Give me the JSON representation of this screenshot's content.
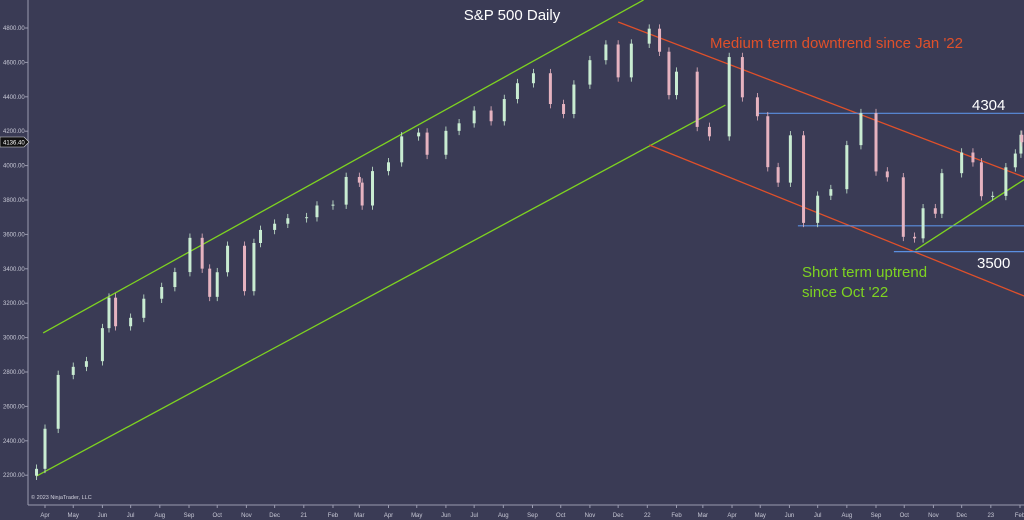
{
  "chart_data": {
    "type": "candlestick",
    "title": "S&P 500 Daily",
    "copyright": "© 2023 NinjaTrader, LLC",
    "last_price_label": "4136.40",
    "ylim": [
      2100,
      4960
    ],
    "y_ticks": [
      "4800.00",
      "4600.00",
      "4400.00",
      "4200.00",
      "4000.00",
      "3800.00",
      "3600.00",
      "3400.00",
      "3200.00",
      "3000.00",
      "2800.00",
      "2600.00",
      "2400.00",
      "2200.00"
    ],
    "x_ticks": [
      {
        "date": "2020-04-01",
        "label": "Apr"
      },
      {
        "date": "2020-05-01",
        "label": "May"
      },
      {
        "date": "2020-06-01",
        "label": "Jun"
      },
      {
        "date": "2020-07-01",
        "label": "Jul"
      },
      {
        "date": "2020-08-01",
        "label": "Aug"
      },
      {
        "date": "2020-09-01",
        "label": "Sep"
      },
      {
        "date": "2020-10-01",
        "label": "Oct"
      },
      {
        "date": "2020-11-01",
        "label": "Nov"
      },
      {
        "date": "2020-12-01",
        "label": "Dec"
      },
      {
        "date": "2021-01-01",
        "label": "21"
      },
      {
        "date": "2021-02-01",
        "label": "Feb"
      },
      {
        "date": "2021-03-01",
        "label": "Mar"
      },
      {
        "date": "2021-04-01",
        "label": "Apr"
      },
      {
        "date": "2021-05-01",
        "label": "May"
      },
      {
        "date": "2021-06-01",
        "label": "Jun"
      },
      {
        "date": "2021-07-01",
        "label": "Jul"
      },
      {
        "date": "2021-08-01",
        "label": "Aug"
      },
      {
        "date": "2021-09-01",
        "label": "Sep"
      },
      {
        "date": "2021-10-01",
        "label": "Oct"
      },
      {
        "date": "2021-11-01",
        "label": "Nov"
      },
      {
        "date": "2021-12-01",
        "label": "Dec"
      },
      {
        "date": "2022-01-01",
        "label": "22"
      },
      {
        "date": "2022-02-01",
        "label": "Feb"
      },
      {
        "date": "2022-03-01",
        "label": "Mar"
      },
      {
        "date": "2022-04-01",
        "label": "Apr"
      },
      {
        "date": "2022-05-01",
        "label": "May"
      },
      {
        "date": "2022-06-01",
        "label": "Jun"
      },
      {
        "date": "2022-07-01",
        "label": "Jul"
      },
      {
        "date": "2022-08-01",
        "label": "Aug"
      },
      {
        "date": "2022-09-01",
        "label": "Sep"
      },
      {
        "date": "2022-10-01",
        "label": "Oct"
      },
      {
        "date": "2022-11-01",
        "label": "Nov"
      },
      {
        "date": "2022-12-01",
        "label": "Dec"
      },
      {
        "date": "2023-01-01",
        "label": "23"
      },
      {
        "date": "2023-02-01",
        "label": "Feb"
      }
    ],
    "closes": [
      [
        "2020-03-23",
        2237
      ],
      [
        "2020-04-01",
        2470
      ],
      [
        "2020-04-15",
        2783
      ],
      [
        "2020-05-01",
        2830
      ],
      [
        "2020-05-15",
        2863
      ],
      [
        "2020-06-01",
        3055
      ],
      [
        "2020-06-08",
        3232
      ],
      [
        "2020-06-15",
        3066
      ],
      [
        "2020-07-01",
        3115
      ],
      [
        "2020-07-15",
        3226
      ],
      [
        "2020-08-03",
        3294
      ],
      [
        "2020-08-17",
        3381
      ],
      [
        "2020-09-02",
        3580
      ],
      [
        "2020-09-15",
        3401
      ],
      [
        "2020-09-23",
        3237
      ],
      [
        "2020-10-01",
        3380
      ],
      [
        "2020-10-12",
        3534
      ],
      [
        "2020-10-30",
        3270
      ],
      [
        "2020-11-09",
        3550
      ],
      [
        "2020-11-16",
        3626
      ],
      [
        "2020-12-01",
        3662
      ],
      [
        "2020-12-15",
        3694
      ],
      [
        "2021-01-04",
        3700
      ],
      [
        "2021-01-15",
        3768
      ],
      [
        "2021-02-01",
        3773
      ],
      [
        "2021-02-15",
        3934
      ],
      [
        "2021-03-01",
        3901
      ],
      [
        "2021-03-04",
        3768
      ],
      [
        "2021-03-15",
        3968
      ],
      [
        "2021-04-01",
        4019
      ],
      [
        "2021-04-15",
        4170
      ],
      [
        "2021-05-03",
        4192
      ],
      [
        "2021-05-12",
        4063
      ],
      [
        "2021-06-01",
        4202
      ],
      [
        "2021-06-15",
        4246
      ],
      [
        "2021-07-01",
        4320
      ],
      [
        "2021-07-19",
        4258
      ],
      [
        "2021-08-02",
        4387
      ],
      [
        "2021-08-16",
        4479
      ],
      [
        "2021-09-02",
        4537
      ],
      [
        "2021-09-20",
        4358
      ],
      [
        "2021-10-04",
        4300
      ],
      [
        "2021-10-15",
        4471
      ],
      [
        "2021-11-01",
        4613
      ],
      [
        "2021-11-18",
        4704
      ],
      [
        "2021-12-01",
        4513
      ],
      [
        "2021-12-15",
        4709
      ],
      [
        "2022-01-03",
        4796
      ],
      [
        "2022-01-14",
        4662
      ],
      [
        "2022-01-24",
        4410
      ],
      [
        "2022-02-01",
        4546
      ],
      [
        "2022-02-23",
        4225
      ],
      [
        "2022-03-08",
        4170
      ],
      [
        "2022-03-29",
        4631
      ],
      [
        "2022-04-12",
        4397
      ],
      [
        "2022-04-28",
        4287
      ],
      [
        "2022-05-09",
        3991
      ],
      [
        "2022-05-20",
        3901
      ],
      [
        "2022-06-02",
        4176
      ],
      [
        "2022-06-16",
        3667
      ],
      [
        "2022-07-01",
        3825
      ],
      [
        "2022-07-15",
        3863
      ],
      [
        "2022-08-01",
        4119
      ],
      [
        "2022-08-16",
        4305
      ],
      [
        "2022-09-01",
        3966
      ],
      [
        "2022-09-13",
        3932
      ],
      [
        "2022-09-30",
        3586
      ],
      [
        "2022-10-12",
        3577
      ],
      [
        "2022-10-21",
        3752
      ],
      [
        "2022-11-03",
        3720
      ],
      [
        "2022-11-10",
        3956
      ],
      [
        "2022-12-01",
        4076
      ],
      [
        "2022-12-13",
        4019
      ],
      [
        "2022-12-22",
        3822
      ],
      [
        "2023-01-03",
        3824
      ],
      [
        "2023-01-17",
        3990
      ],
      [
        "2023-01-27",
        4070
      ],
      [
        "2023-02-02",
        4179
      ],
      [
        "2023-02-03",
        4136
      ]
    ],
    "trendlines": [
      {
        "name": "long-channel-upper",
        "color": "#7ed321",
        "from": [
          "2020-03-30",
          3027
        ],
        "to": [
          "2021-12-28",
          4963
        ]
      },
      {
        "name": "long-channel-lower",
        "color": "#7ed321",
        "from": [
          "2020-03-23",
          2195
        ],
        "to": [
          "2022-03-25",
          4352
        ]
      },
      {
        "name": "medium-downtrend-upper",
        "color": "#e0502a",
        "from": [
          "2021-12-01",
          4835
        ],
        "to": [
          "2023-02-08",
          3928
        ]
      },
      {
        "name": "medium-downtrend-lower",
        "color": "#e0502a",
        "from": [
          "2022-01-03",
          4120
        ],
        "to": [
          "2023-02-08",
          3236
        ]
      },
      {
        "name": "short-uptrend",
        "color": "#7ed321",
        "from": [
          "2022-10-13",
          3509
        ],
        "to": [
          "2023-02-08",
          3928
        ]
      }
    ],
    "levels": [
      {
        "name": "resistance",
        "value": 4304,
        "from": "2022-04-28",
        "label": "4304",
        "color": "#5b8fe0"
      },
      {
        "name": "mid-support",
        "value": 3650,
        "from": "2022-06-10",
        "color": "#5b8fe0"
      },
      {
        "name": "support",
        "value": 3500,
        "from": "2022-09-20",
        "label": "3500",
        "color": "#5b8fe0"
      }
    ],
    "annotations": [
      {
        "text": "Medium term downtrend since Jan '22",
        "color": "#e0502a"
      },
      {
        "text": "Short term uptrend",
        "color": "#7ed321"
      },
      {
        "text": "since Oct '22",
        "color": "#7ed321"
      }
    ],
    "colors": {
      "background": "#3a3b55",
      "up_candle": "#c9ecd2",
      "down_candle": "#e6b3c0",
      "axis": "#9a9bb0"
    }
  }
}
